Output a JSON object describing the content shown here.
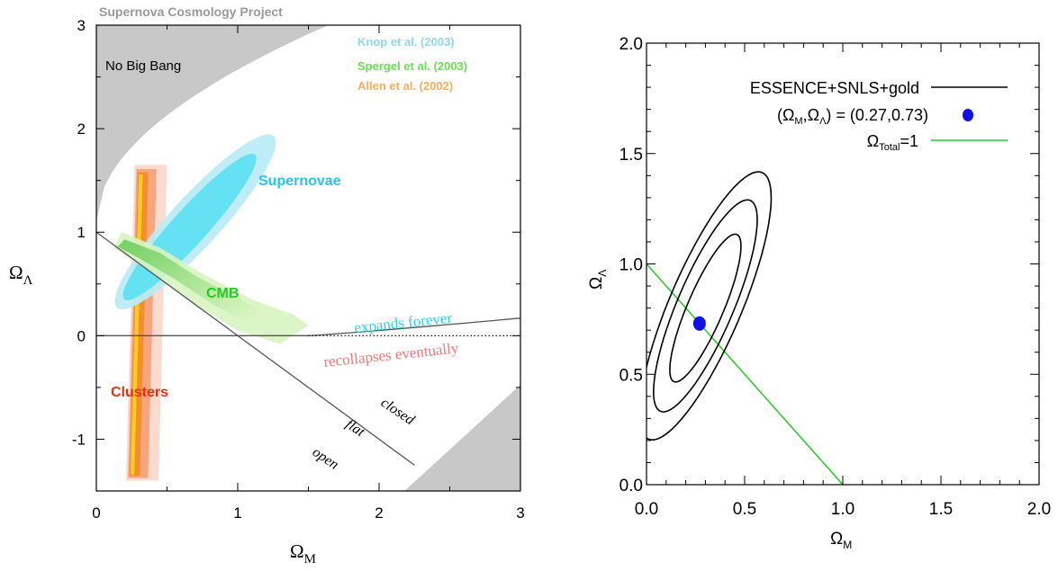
{
  "chart_data": [
    {
      "type": "contour",
      "header": "Supernova Cosmology Project",
      "xlabel_main": "Ω",
      "xlabel_sub": "M",
      "ylabel_main": "Ω",
      "ylabel_sub": "Λ",
      "xlim": [
        0,
        3
      ],
      "ylim": [
        -1.5,
        3
      ],
      "xticks": [
        0,
        1,
        2,
        3
      ],
      "xtick_labels": [
        "0",
        "1",
        "2",
        "3"
      ],
      "yticks": [
        -1,
        0,
        1,
        2,
        3
      ],
      "ytick_labels": [
        "-1",
        "0",
        "1",
        "2",
        "3"
      ],
      "legend": [
        {
          "label": "Knop et al. (2003)",
          "color": "#8fd8ee"
        },
        {
          "label": "Spergel et al.  (2003)",
          "color": "#6cdc56"
        },
        {
          "label": "Allen et al.  (2002)",
          "color": "#f0b060"
        }
      ],
      "region_labels": {
        "no_big_bang": "No Big Bang",
        "supernovae": "Supernovae",
        "cmb": "CMB",
        "clusters": "Clusters",
        "expands": "expands forever",
        "recollapses": "recollapses eventually",
        "closed": "closed",
        "flat": "flat",
        "open": "open"
      },
      "colors": {
        "supernovae": "#29c4e8",
        "cmb": "#22cc22",
        "clusters": "#e83010",
        "expands": "#22d8e8",
        "recollapses": "#f07878",
        "shade": "#c8c8c8"
      },
      "contours": {
        "supernovae_outer": {
          "center": [
            0.7,
            1.1
          ],
          "angle_deg": 57,
          "semi_major": 1.0,
          "semi_minor": 0.2
        },
        "supernovae_inner": {
          "center": [
            0.66,
            1.05
          ],
          "angle_deg": 57,
          "semi_major": 0.84,
          "semi_minor": 0.14
        },
        "clusters_band": {
          "x_range": [
            0.18,
            0.45
          ],
          "y_range": [
            -1.4,
            1.65
          ]
        },
        "cmb_band": {
          "from": [
            0.1,
            0.92
          ],
          "to": [
            1.3,
            0.05
          ]
        }
      },
      "lines": {
        "flat": [
          [
            0,
            1
          ],
          [
            2.25,
            -1.25
          ]
        ],
        "boundary": [
          [
            0,
            0
          ],
          [
            1.5,
            0
          ],
          [
            3,
            0.17
          ]
        ]
      }
    },
    {
      "type": "contour",
      "xlabel_main": "Ω",
      "xlabel_sub": "M",
      "ylabel_main": "Ω",
      "ylabel_sub": "Λ",
      "xlim": [
        0,
        2
      ],
      "ylim": [
        0,
        2
      ],
      "xticks": [
        0,
        0.5,
        1,
        1.5,
        2
      ],
      "xtick_labels": [
        "0.0",
        "0.5",
        "1.0",
        "1.5",
        "2.0"
      ],
      "yticks": [
        0,
        0.5,
        1,
        1.5,
        2
      ],
      "ytick_labels": [
        "0.0",
        "0.5",
        "1.0",
        "1.5",
        "2.0"
      ],
      "legend": [
        {
          "label": "ESSENCE+SNLS+gold",
          "symbol": "line",
          "color": "#000000"
        },
        {
          "label": "(Ω_M,Ω_Λ) = (0.27,0.73)",
          "symbol": "dot",
          "color": "#1010e8"
        },
        {
          "label": "Ω_Total=1",
          "symbol": "line",
          "color": "#22cc22"
        }
      ],
      "best_fit": {
        "x": 0.27,
        "y": 0.73
      },
      "flat_line": [
        [
          0,
          1
        ],
        [
          1,
          0
        ]
      ],
      "contours": [
        {
          "center": [
            0.3,
            0.8
          ],
          "angle_deg": 64,
          "semi_major": 0.37,
          "semi_minor": 0.09
        },
        {
          "center": [
            0.3,
            0.81
          ],
          "angle_deg": 64,
          "semi_major": 0.53,
          "semi_minor": 0.14
        },
        {
          "center": [
            0.3,
            0.81
          ],
          "angle_deg": 64,
          "semi_major": 0.67,
          "semi_minor": 0.18
        }
      ]
    }
  ]
}
